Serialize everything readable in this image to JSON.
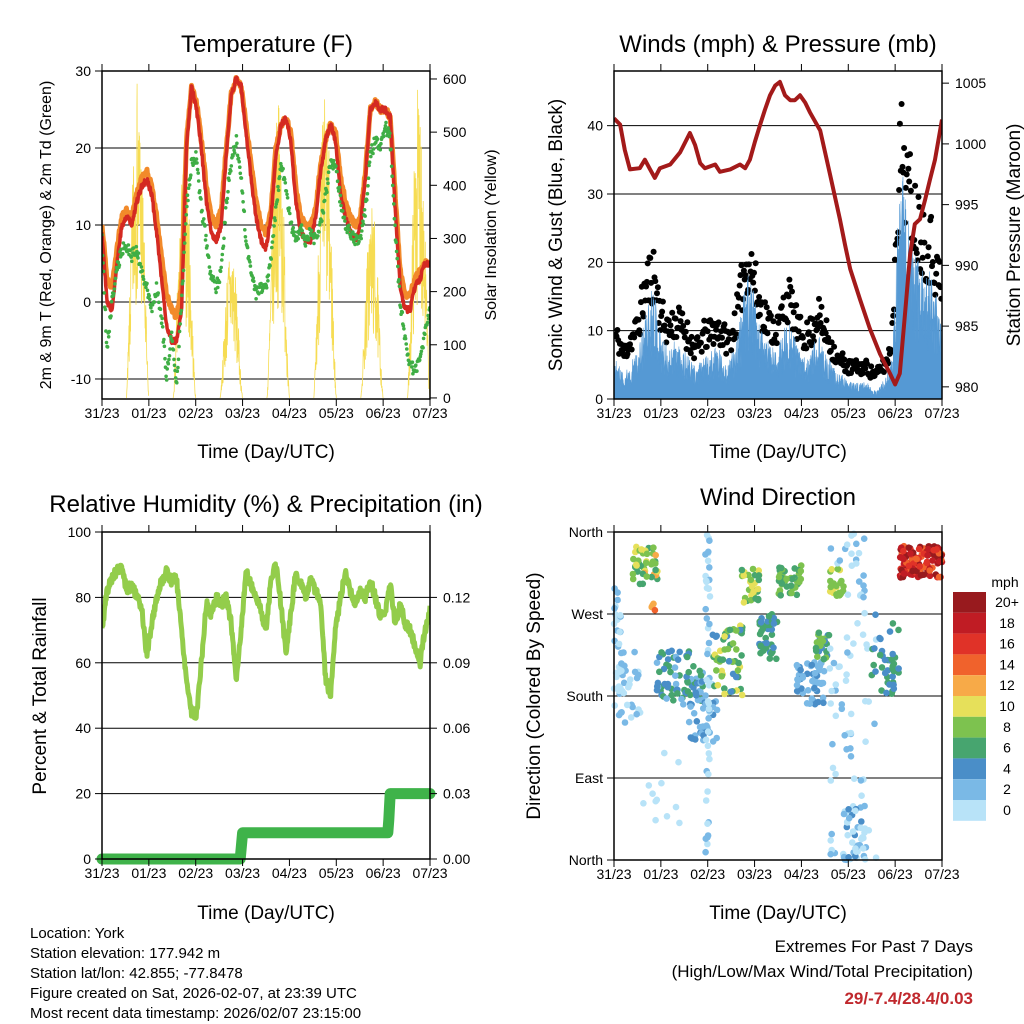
{
  "x_tick_labels": [
    "31/23",
    "01/23",
    "02/23",
    "03/23",
    "04/23",
    "05/23",
    "06/23",
    "07/23"
  ],
  "chart_data": [
    {
      "type": "line",
      "title": "Temperature (F)",
      "xlabel": "Time (Day/UTC)",
      "ylabel": "2m & 9m T (Red, Orange) & 2m Td (Green)",
      "ylabel_right": "Solar Insolation (Yellow)",
      "xlim_days": [
        0,
        7
      ],
      "ylim": [
        -12.6,
        30
      ],
      "ylim_right": [
        -2,
        615
      ],
      "yticks": [
        -10,
        0,
        10,
        20,
        30
      ],
      "yticks_right": [
        0,
        100,
        200,
        300,
        400,
        500,
        600
      ],
      "grid_y": [
        -10,
        0,
        10,
        20
      ],
      "series": [
        {
          "name": "9m T",
          "color": "#f28a2a",
          "values": [
            10,
            3,
            2,
            7,
            11,
            12,
            11,
            14,
            16,
            17,
            15,
            11,
            6,
            1,
            -1,
            -2,
            2,
            21,
            28,
            26,
            21,
            15,
            11,
            10,
            12,
            20,
            27,
            29,
            28,
            23,
            18,
            13,
            10,
            9,
            12,
            20,
            23,
            24,
            22,
            15,
            11,
            10,
            10,
            12,
            18,
            21,
            23,
            22,
            16,
            13,
            11,
            10,
            11,
            17,
            25,
            26,
            25,
            25,
            24,
            14,
            4,
            1,
            1,
            3,
            4,
            5,
            5
          ]
        },
        {
          "name": "2m T",
          "color": "#d42a22",
          "values": [
            9,
            0,
            -1,
            5,
            10,
            11,
            10,
            13,
            15,
            16,
            14,
            9,
            3,
            -3,
            -5,
            -5,
            -1,
            20,
            28,
            25,
            20,
            13,
            9,
            8,
            10,
            19,
            27,
            29,
            28,
            22,
            16,
            11,
            8,
            7,
            11,
            19,
            23,
            24,
            21,
            13,
            9,
            8,
            8,
            11,
            17,
            21,
            23,
            21,
            14,
            11,
            9,
            8,
            10,
            16,
            25,
            26,
            25,
            25,
            24,
            12,
            2,
            -1,
            -1,
            2,
            3,
            5,
            5
          ]
        },
        {
          "name": "2m Td",
          "color": "#3fae45",
          "values": [
            8,
            -6,
            0,
            4,
            7,
            7,
            6,
            7,
            4,
            2,
            -1,
            2,
            -2,
            -10,
            -4,
            -11,
            0,
            12,
            18,
            19,
            12,
            8,
            3,
            2,
            4,
            13,
            18,
            21,
            16,
            8,
            4,
            1,
            2,
            2,
            6,
            12,
            18,
            15,
            10,
            8,
            10,
            8,
            9,
            8,
            10,
            14,
            18,
            18,
            13,
            10,
            9,
            8,
            8,
            12,
            19,
            21,
            20,
            23,
            21,
            9,
            0,
            -5,
            -8,
            -9,
            -7,
            -4,
            -1
          ]
        }
      ],
      "solar": {
        "name": "Solar Insolation",
        "color": "#f6dc52",
        "daily_peaks": [
          600,
          460,
          300,
          560,
          580,
          370,
          595
        ]
      }
    },
    {
      "type": "line",
      "title": "Winds (mph) & Pressure (mb)",
      "xlabel": "Time (Day/UTC)",
      "ylabel": "Sonic Wind & Gust (Blue, Black)",
      "ylabel_right": "Station Pressure (Maroon)",
      "xlim_days": [
        0,
        7
      ],
      "ylim": [
        0,
        48
      ],
      "ylim_right": [
        979,
        1006
      ],
      "yticks": [
        0,
        10,
        20,
        30,
        40
      ],
      "yticks_right": [
        980,
        985,
        990,
        995,
        1000,
        1005
      ],
      "grid_y": [
        10,
        20,
        30,
        40
      ],
      "series": [
        {
          "name": "Gust",
          "color": "#000000",
          "values": [
            10,
            9,
            7,
            9,
            10,
            12,
            16,
            19,
            20,
            15,
            12,
            11,
            12,
            12,
            11,
            10,
            8,
            8,
            10,
            10,
            11,
            11,
            10,
            9,
            11,
            14,
            19,
            22,
            20,
            15,
            14,
            12,
            11,
            11,
            14,
            16,
            14,
            11,
            10,
            10,
            11,
            14,
            11,
            10,
            8,
            6,
            6,
            5,
            5,
            5,
            5,
            5,
            4,
            4,
            5,
            6,
            10,
            32,
            40,
            34,
            30,
            28,
            26,
            24,
            24,
            20,
            17
          ]
        },
        {
          "name": "Sonic Wind",
          "color": "#5599d4",
          "values": [
            5,
            4,
            3,
            4,
            5,
            6,
            9,
            12,
            14,
            9,
            7,
            6,
            7,
            7,
            6,
            5,
            4,
            4,
            5,
            5,
            6,
            6,
            5,
            4,
            6,
            8,
            12,
            15,
            13,
            9,
            8,
            7,
            6,
            6,
            8,
            10,
            8,
            6,
            5,
            5,
            6,
            8,
            6,
            5,
            4,
            3,
            3,
            2,
            2,
            2,
            2,
            2,
            1,
            1,
            2,
            3,
            5,
            20,
            27,
            22,
            18,
            17,
            16,
            15,
            15,
            12,
            10
          ]
        },
        {
          "name": "Station Pressure",
          "color": "#a31a1a",
          "points": [
            [
              0,
              1002.1
            ],
            [
              0.13,
              1001.6
            ],
            [
              0.23,
              999.5
            ],
            [
              0.34,
              997.9
            ],
            [
              0.55,
              998
            ],
            [
              0.66,
              998.7
            ],
            [
              0.77,
              997.9
            ],
            [
              0.87,
              997.2
            ],
            [
              0.98,
              998
            ],
            [
              1.2,
              998.3
            ],
            [
              1.41,
              999.3
            ],
            [
              1.62,
              1000.9
            ],
            [
              1.73,
              999.9
            ],
            [
              1.84,
              998.4
            ],
            [
              1.94,
              998
            ],
            [
              2.16,
              998.3
            ],
            [
              2.26,
              997.7
            ],
            [
              2.48,
              997.9
            ],
            [
              2.69,
              998.3
            ],
            [
              2.8,
              998
            ],
            [
              2.9,
              998.7
            ],
            [
              3.01,
              1000.2
            ],
            [
              3.12,
              1001.6
            ],
            [
              3.22,
              1002.8
            ],
            [
              3.33,
              1004
            ],
            [
              3.44,
              1004.8
            ],
            [
              3.54,
              1005.1
            ],
            [
              3.65,
              1004
            ],
            [
              3.76,
              1003.6
            ],
            [
              3.86,
              1003.6
            ],
            [
              3.97,
              1004
            ],
            [
              4.08,
              1003.4
            ],
            [
              4.18,
              1002.6
            ],
            [
              4.4,
              1001.1
            ],
            [
              4.61,
              997.5
            ],
            [
              4.82,
              993.8
            ],
            [
              4.93,
              991.7
            ],
            [
              5.04,
              989.7
            ],
            [
              5.25,
              987.2
            ],
            [
              5.46,
              984.8
            ],
            [
              5.68,
              982.7
            ],
            [
              5.89,
              981.1
            ],
            [
              6.0,
              980.2
            ],
            [
              6.1,
              981.1
            ],
            [
              6.21,
              986
            ],
            [
              6.32,
              990.9
            ],
            [
              6.42,
              993.4
            ],
            [
              6.53,
              993.8
            ],
            [
              6.64,
              995.4
            ],
            [
              6.74,
              997
            ],
            [
              6.85,
              998.7
            ],
            [
              7.0,
              1002
            ]
          ]
        }
      ]
    },
    {
      "type": "line",
      "title": "Relative Humidity (%) & Precipitation (in)",
      "xlabel": "Time (Day/UTC)",
      "ylabel": "Percent & Total Rainfall",
      "xlim_days": [
        0,
        7
      ],
      "ylim": [
        0,
        100
      ],
      "ylim_right": [
        0,
        0.15
      ],
      "yticks": [
        0,
        20,
        40,
        60,
        80,
        100
      ],
      "yticks_right": [
        "0.00",
        "0.03",
        "0.06",
        "0.09",
        "0.12"
      ],
      "grid_y": [
        20,
        40,
        60,
        80
      ],
      "series": [
        {
          "name": "Relative Humidity",
          "color": "#93cd4b",
          "values": [
            70,
            82,
            86,
            88,
            89,
            82,
            84,
            80,
            77,
            62,
            72,
            80,
            85,
            88,
            85,
            86,
            70,
            55,
            45,
            44,
            60,
            78,
            75,
            80,
            78,
            80,
            72,
            55,
            70,
            88,
            84,
            80,
            76,
            70,
            85,
            90,
            78,
            63,
            75,
            88,
            84,
            80,
            86,
            82,
            78,
            55,
            50,
            70,
            80,
            88,
            82,
            78,
            82,
            80,
            85,
            80,
            74,
            76,
            84,
            72,
            78,
            72,
            70,
            65,
            60,
            70,
            76
          ]
        },
        {
          "name": "Total Precipitation",
          "color": "#3fb34a",
          "points": [
            [
              0,
              0
            ],
            [
              2.95,
              0
            ],
            [
              2.97,
              0.005
            ],
            [
              3.0,
              0.012
            ],
            [
              6.1,
              0.012
            ],
            [
              6.12,
              0.018
            ],
            [
              6.15,
              0.03
            ],
            [
              7,
              0.03
            ]
          ]
        }
      ]
    },
    {
      "type": "scatter",
      "title": "Wind Direction",
      "xlabel": "Time (Day/UTC)",
      "ylabel": "Direction (Colored By Speed)",
      "xlim_days": [
        0,
        7
      ],
      "ylim": [
        0,
        360
      ],
      "yticks": [
        "North",
        "East",
        "South",
        "West",
        "North"
      ],
      "ytick_values": [
        0,
        90,
        180,
        270,
        360
      ],
      "grid_y": [
        90,
        180,
        270
      ],
      "clusters": [
        {
          "t": [
            0,
            0.15
          ],
          "dir": [
            160,
            300
          ],
          "mph": [
            0,
            3
          ],
          "n": 25
        },
        {
          "t": [
            0.1,
            0.6
          ],
          "dir": [
            150,
            230
          ],
          "mph": [
            0,
            4
          ],
          "n": 30
        },
        {
          "t": [
            0.4,
            0.95
          ],
          "dir": [
            300,
            345
          ],
          "mph": [
            6,
            13
          ],
          "n": 45
        },
        {
          "t": [
            0.8,
            0.9
          ],
          "dir": [
            270,
            285
          ],
          "mph": [
            12,
            16
          ],
          "n": 4
        },
        {
          "t": [
            0.9,
            1.9
          ],
          "dir": [
            170,
            230
          ],
          "mph": [
            3,
            8
          ],
          "n": 70
        },
        {
          "t": [
            1.6,
            2.2
          ],
          "dir": [
            130,
            200
          ],
          "mph": [
            2,
            5
          ],
          "n": 40
        },
        {
          "t": [
            1.95,
            2.05
          ],
          "dir": [
            0,
            360
          ],
          "mph": [
            0,
            3
          ],
          "n": 50
        },
        {
          "t": [
            2.1,
            2.75
          ],
          "dir": [
            180,
            260
          ],
          "mph": [
            5,
            12
          ],
          "n": 60
        },
        {
          "t": [
            2.7,
            3.1
          ],
          "dir": [
            280,
            320
          ],
          "mph": [
            6,
            12
          ],
          "n": 30
        },
        {
          "t": [
            3.1,
            3.5
          ],
          "dir": [
            220,
            270
          ],
          "mph": [
            4,
            8
          ],
          "n": 40
        },
        {
          "t": [
            3.5,
            4.0
          ],
          "dir": [
            290,
            325
          ],
          "mph": [
            6,
            10
          ],
          "n": 40
        },
        {
          "t": [
            3.9,
            4.5
          ],
          "dir": [
            170,
            220
          ],
          "mph": [
            2,
            6
          ],
          "n": 50
        },
        {
          "t": [
            4.3,
            4.6
          ],
          "dir": [
            220,
            250
          ],
          "mph": [
            5,
            9
          ],
          "n": 25
        },
        {
          "t": [
            4.6,
            4.9
          ],
          "dir": [
            290,
            320
          ],
          "mph": [
            8,
            11
          ],
          "n": 25
        },
        {
          "t": [
            4.6,
            5.6
          ],
          "dir": [
            0,
            360
          ],
          "mph": [
            0,
            3
          ],
          "n": 80
        },
        {
          "t": [
            4.9,
            5.4
          ],
          "dir": [
            0,
            60
          ],
          "mph": [
            0,
            5
          ],
          "n": 40
        },
        {
          "t": [
            0.6,
            1.4
          ],
          "dir": [
            30,
            120
          ],
          "mph": [
            0,
            2
          ],
          "n": 12
        },
        {
          "t": [
            5.5,
            6.1
          ],
          "dir": [
            180,
            270
          ],
          "mph": [
            4,
            8
          ],
          "n": 40
        },
        {
          "t": [
            6.1,
            7.0
          ],
          "dir": [
            310,
            345
          ],
          "mph": [
            14,
            22
          ],
          "n": 120
        }
      ],
      "colorbar": {
        "title": "mph",
        "labels": [
          "20+",
          "18",
          "16",
          "14",
          "12",
          "10",
          "8",
          "6",
          "4",
          "2",
          "0"
        ],
        "colors": [
          "#981a1e",
          "#c01c24",
          "#e03228",
          "#f0622c",
          "#f7aa48",
          "#e6e05a",
          "#7dc24f",
          "#47a56f",
          "#4a8ec8",
          "#7ab9e6",
          "#b8e3f8"
        ]
      }
    }
  ],
  "info": {
    "location": "Location: York",
    "elevation": "Station elevation: 177.942 m",
    "latlon": "Station lat/lon: 42.855; -77.8478",
    "created": "Figure created on Sat, 2026-02-07, at 23:39 UTC",
    "recent": "Most recent data timestamp: 2026/02/07 23:15:00"
  },
  "extremes": {
    "heading": "Extremes For Past 7 Days",
    "legend": "(High/Low/Max Wind/Total Precipitation)",
    "values": "29/-7.4/28.4/0.03"
  }
}
